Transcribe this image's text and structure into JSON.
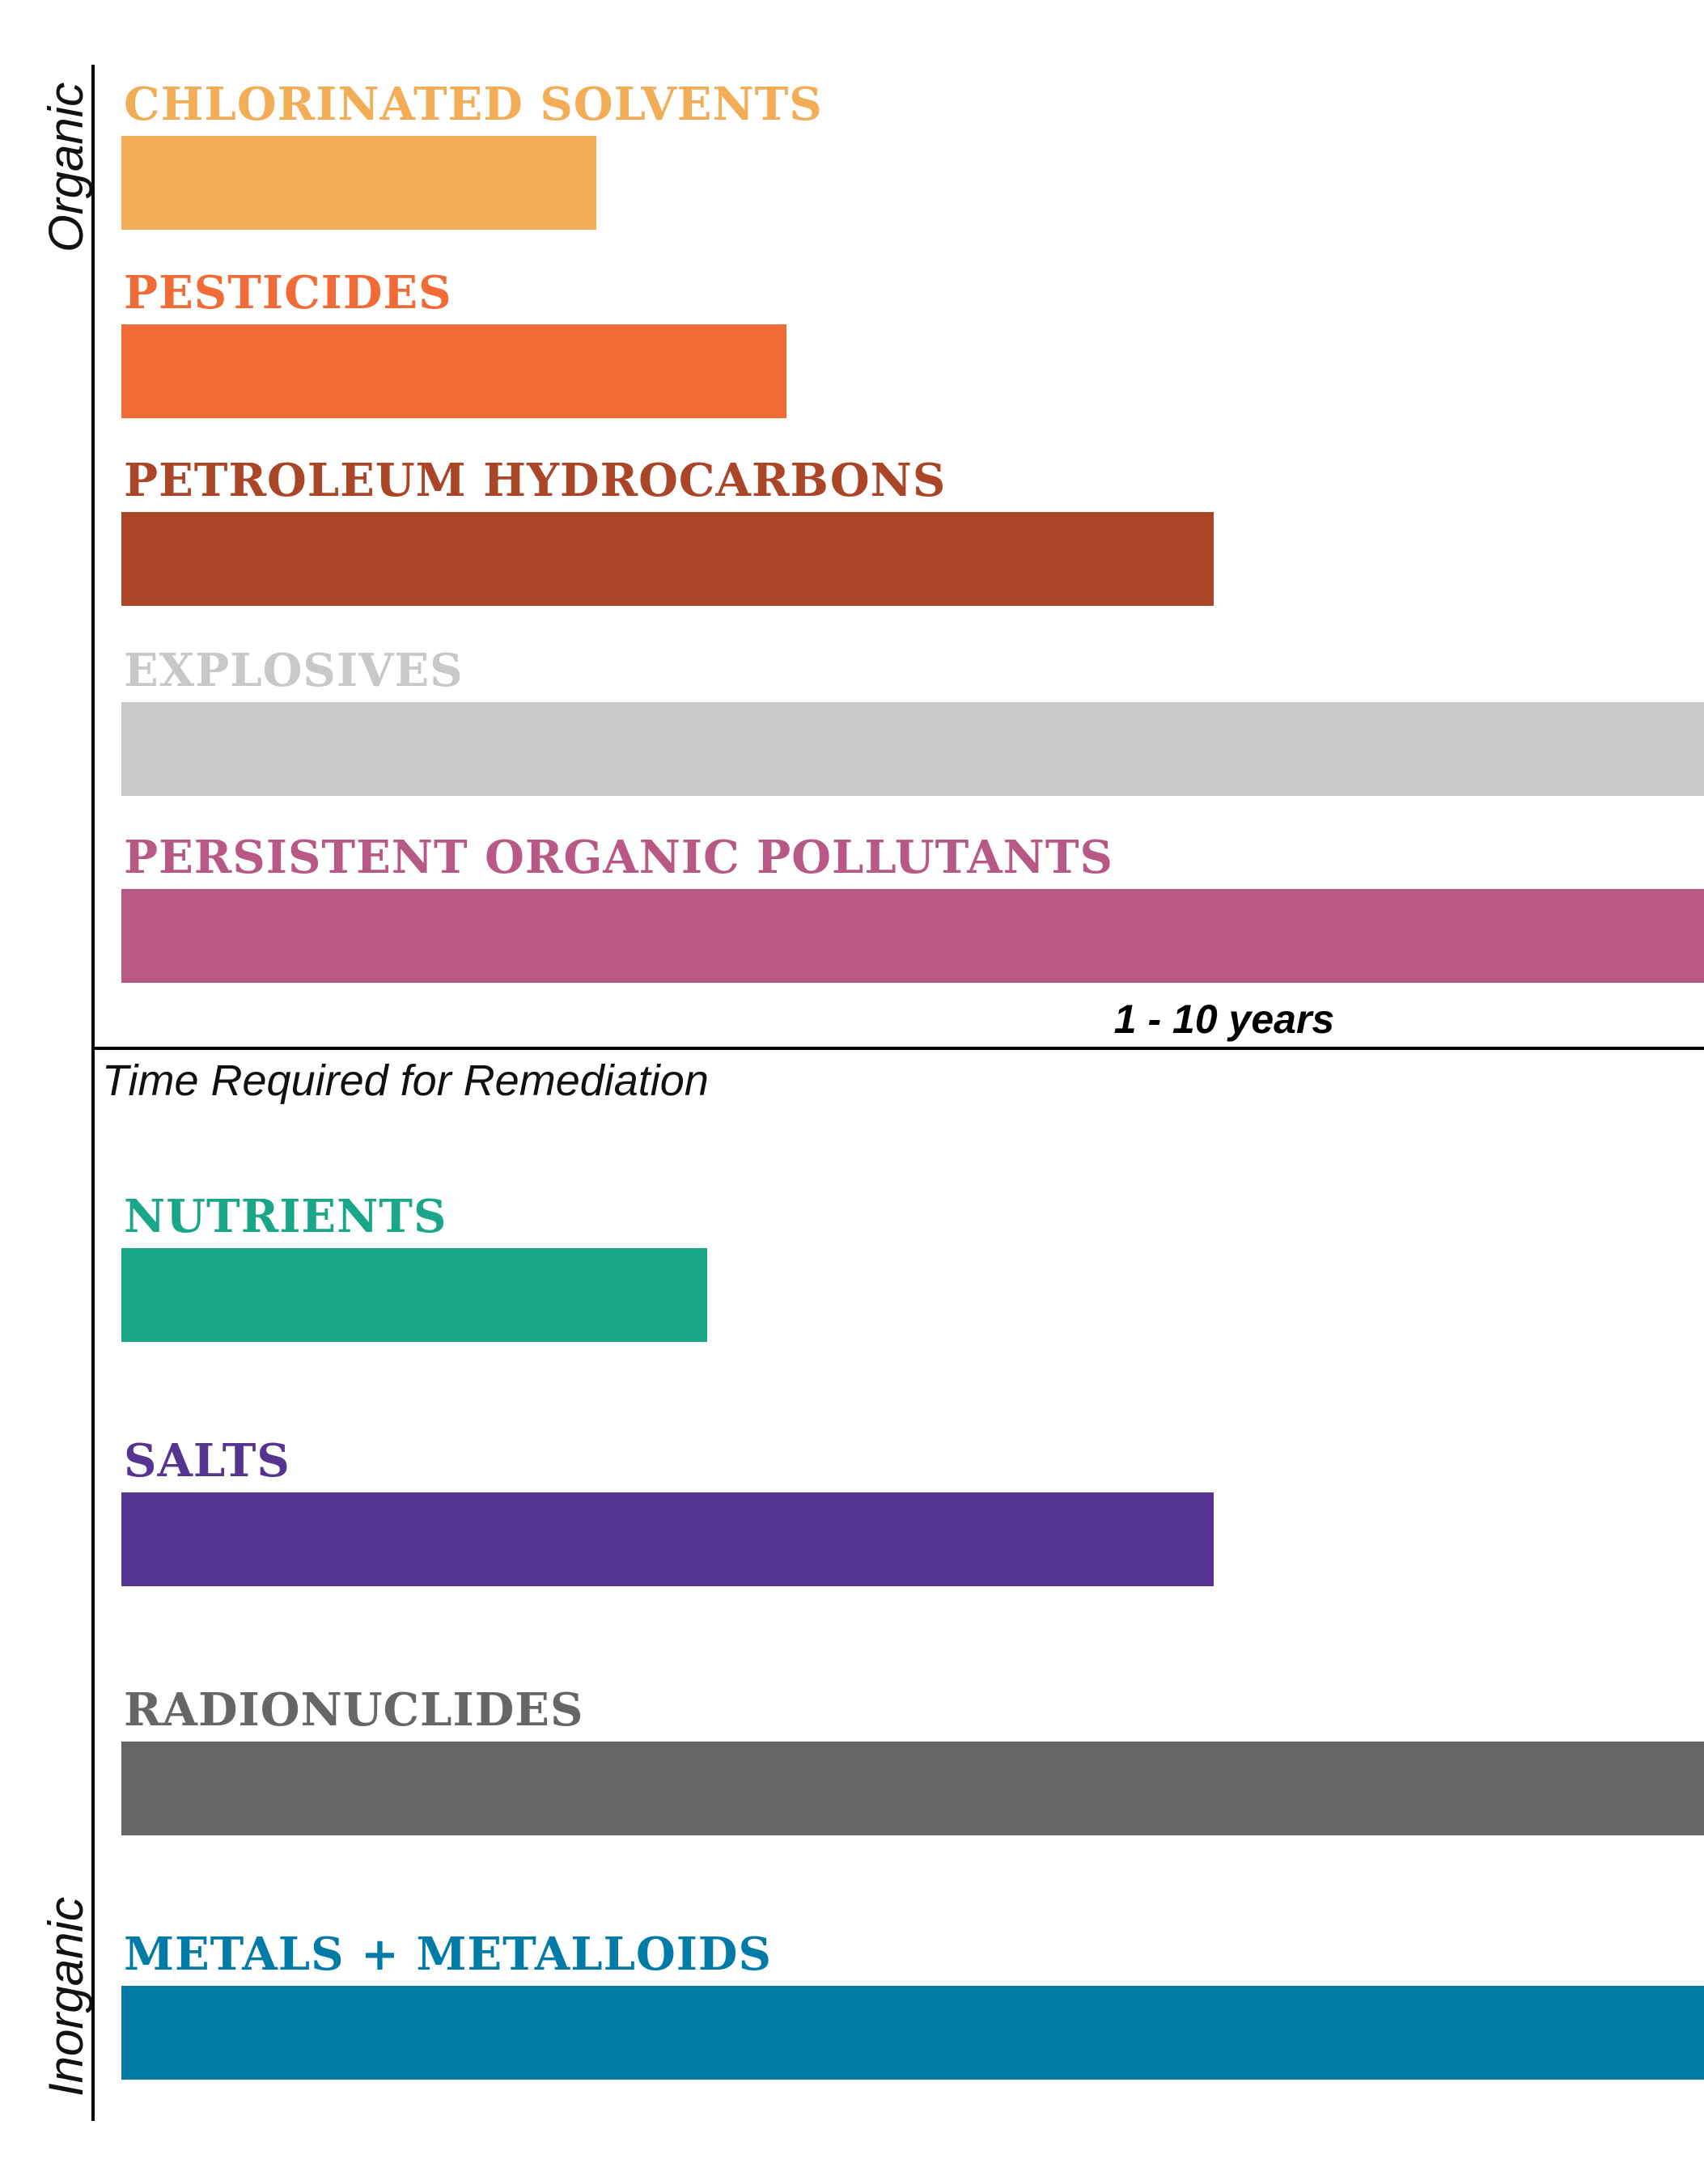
{
  "chart_data": {
    "type": "bar",
    "orientation": "horizontal",
    "xlabel": "Time Required for Remediation",
    "tick_label": "1 - 10 years",
    "groups": [
      {
        "name": "Organic",
        "categories": [
          "CHLORINATED SOLVENTS",
          "PESTICIDES",
          "PETROLEUM HYDROCARBONS",
          "EXPLOSIVES",
          "PERSISTENT ORGANIC POLLUTANTS"
        ],
        "values": [
          0.3,
          0.42,
          0.69,
          1.0,
          1.0
        ],
        "colors": [
          "#f3ad57",
          "#f06b35",
          "#ab4527",
          "#c7c8c9",
          "#b85985"
        ]
      },
      {
        "name": "Inorganic",
        "categories": [
          "NUTRIENTS",
          "SALTS",
          "RADIONUCLIDES",
          "METALS + METALLOIDS"
        ],
        "values": [
          0.37,
          0.69,
          1.0,
          1.0
        ],
        "colors": [
          "#1aa689",
          "#563592",
          "#666668",
          "#007ba8"
        ]
      }
    ]
  }
}
